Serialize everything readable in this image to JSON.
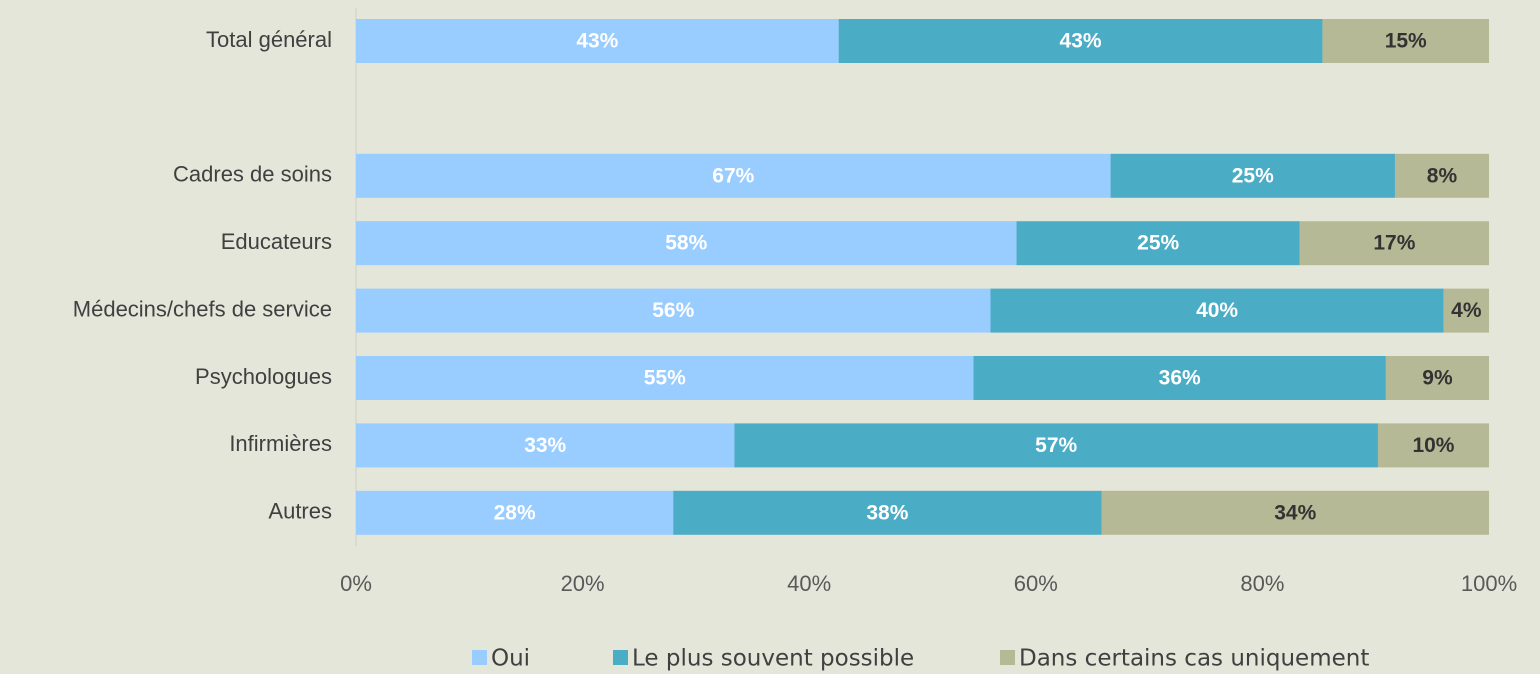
{
  "chart_data": {
    "type": "stacked_bar_horizontal",
    "categories": [
      "Total général",
      null,
      "Cadres de soins",
      "Educateurs",
      "Médecins/chefs de service",
      "Psychologues",
      "Infirmières",
      "Autres"
    ],
    "series": [
      {
        "name": "Oui",
        "color": "#99ccff",
        "values": [
          42.6,
          null,
          66.6,
          58.3,
          56.0,
          54.5,
          33.4,
          28.0
        ],
        "value_labels": [
          "43%",
          null,
          "67%",
          "58%",
          "56%",
          "55%",
          "33%",
          "28%"
        ]
      },
      {
        "name": "Le plus souvent possible",
        "color": "#4bacc6",
        "values": [
          42.7,
          null,
          25.1,
          25.0,
          40.0,
          36.4,
          56.8,
          37.8
        ],
        "value_labels": [
          "43%",
          null,
          "25%",
          "25%",
          "40%",
          "36%",
          "57%",
          "38%"
        ]
      },
      {
        "name": "Dans certains cas uniquement",
        "color": "#b6b995",
        "values": [
          14.7,
          null,
          8.3,
          16.7,
          4.0,
          9.1,
          9.8,
          34.2
        ],
        "value_labels": [
          "15%",
          null,
          "8%",
          "17%",
          "4%",
          "9%",
          "10%",
          "34%"
        ]
      }
    ],
    "xlim": [
      0,
      100
    ],
    "xticks": [
      {
        "value": 0,
        "label": "0%"
      },
      {
        "value": 20,
        "label": "20%"
      },
      {
        "value": 40,
        "label": "40%"
      },
      {
        "value": 60,
        "label": "60%"
      },
      {
        "value": 80,
        "label": "80%"
      },
      {
        "value": 100,
        "label": "100%"
      }
    ],
    "legend": "bottom"
  }
}
